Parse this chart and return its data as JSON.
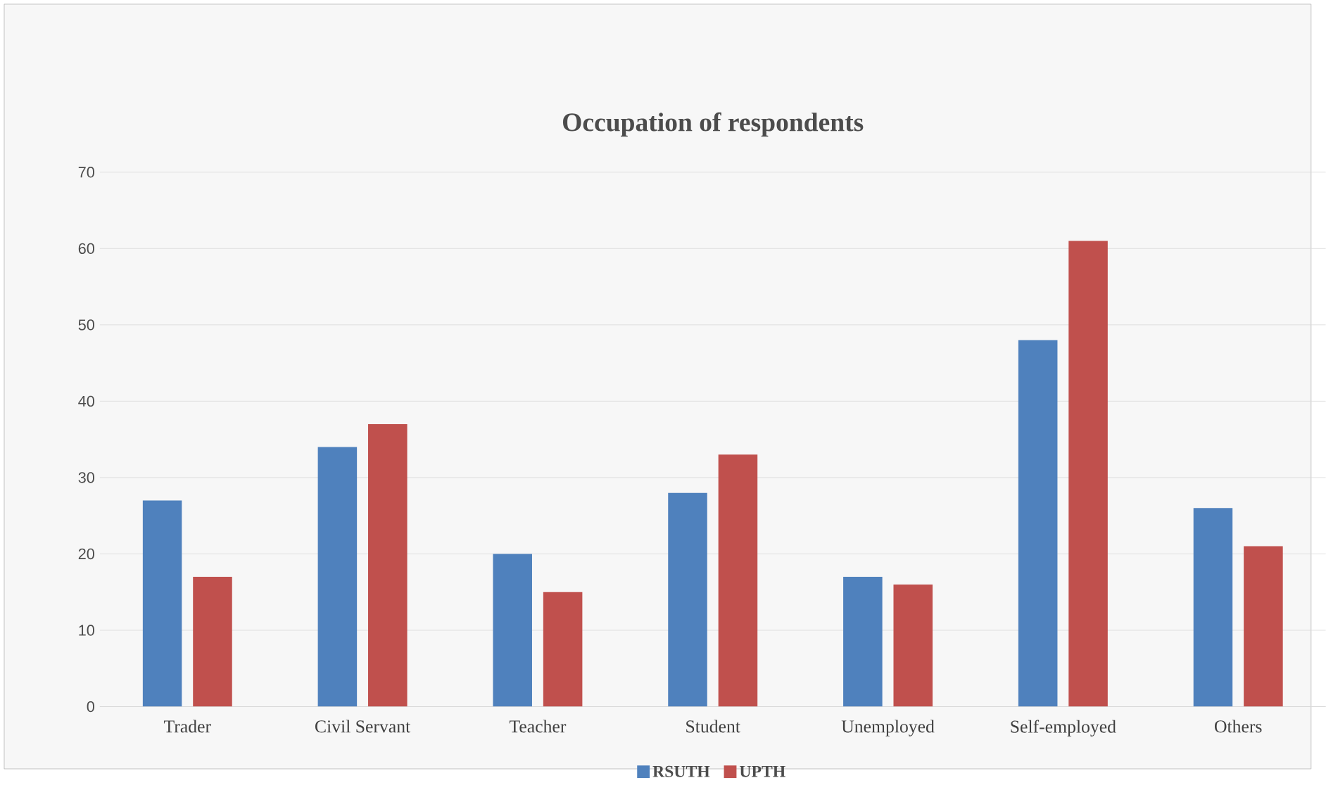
{
  "chart_data": {
    "type": "bar",
    "title": "Occupation of respondents",
    "categories": [
      "Trader",
      "Civil Servant",
      "Teacher",
      "Student",
      "Unemployed",
      "Self-employed",
      "Others"
    ],
    "series": [
      {
        "name": "RSUTH",
        "color": "#4f81bd",
        "values": [
          27,
          34,
          20,
          28,
          17,
          48,
          26
        ]
      },
      {
        "name": "UPTH",
        "color": "#c0504d",
        "values": [
          17,
          37,
          15,
          33,
          16,
          61,
          21
        ]
      }
    ],
    "ylim": [
      0,
      70
    ],
    "yticks": [
      0,
      10,
      20,
      30,
      40,
      50,
      60,
      70
    ],
    "grid": "y",
    "legend": "bottom"
  }
}
